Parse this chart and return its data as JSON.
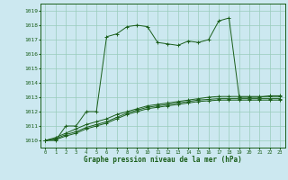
{
  "title": "Graphe pression niveau de la mer (hPa)",
  "background_color": "#cce8f0",
  "grid_color": "#99ccbb",
  "line_color": "#1a5e1a",
  "xlim": [
    -0.5,
    23.5
  ],
  "ylim": [
    1009.5,
    1019.5
  ],
  "yticks": [
    1010,
    1011,
    1012,
    1013,
    1014,
    1015,
    1016,
    1017,
    1018,
    1019
  ],
  "xticks": [
    0,
    1,
    2,
    3,
    4,
    5,
    6,
    7,
    8,
    9,
    10,
    11,
    12,
    13,
    14,
    15,
    16,
    17,
    18,
    19,
    20,
    21,
    22,
    23
  ],
  "series1_x": [
    0,
    1,
    2,
    3,
    4,
    5,
    6,
    7,
    8,
    9,
    10,
    11,
    12,
    13,
    14,
    15,
    16,
    17,
    18,
    19,
    20,
    21,
    22,
    23
  ],
  "series1_y": [
    1010.0,
    1010.0,
    1011.0,
    1011.0,
    1012.0,
    1012.0,
    1017.2,
    1017.4,
    1017.9,
    1018.0,
    1017.9,
    1016.8,
    1016.7,
    1016.6,
    1016.9,
    1016.8,
    1017.0,
    1018.3,
    1018.5,
    1013.0,
    1013.0,
    1013.0,
    1013.1,
    1013.1
  ],
  "series2_x": [
    0,
    1,
    2,
    3,
    4,
    5,
    6,
    7,
    8,
    9,
    10,
    11,
    12,
    13,
    14,
    15,
    16,
    17,
    18,
    19,
    20,
    21,
    22,
    23
  ],
  "series2_y": [
    1010.0,
    1010.2,
    1010.5,
    1010.8,
    1011.1,
    1011.3,
    1011.5,
    1011.8,
    1012.0,
    1012.2,
    1012.4,
    1012.5,
    1012.6,
    1012.7,
    1012.8,
    1012.9,
    1013.0,
    1013.05,
    1013.05,
    1013.05,
    1013.05,
    1013.05,
    1013.05,
    1013.05
  ],
  "series3_x": [
    0,
    1,
    2,
    3,
    4,
    5,
    6,
    7,
    8,
    9,
    10,
    11,
    12,
    13,
    14,
    15,
    16,
    17,
    18,
    19,
    20,
    21,
    22,
    23
  ],
  "series3_y": [
    1010.0,
    1010.1,
    1010.4,
    1010.6,
    1010.9,
    1011.1,
    1011.3,
    1011.6,
    1011.9,
    1012.1,
    1012.3,
    1012.4,
    1012.5,
    1012.6,
    1012.7,
    1012.8,
    1012.85,
    1012.9,
    1012.9,
    1012.9,
    1012.9,
    1012.9,
    1012.9,
    1012.9
  ],
  "series4_x": [
    0,
    1,
    2,
    3,
    4,
    5,
    6,
    7,
    8,
    9,
    10,
    11,
    12,
    13,
    14,
    15,
    16,
    17,
    18,
    19,
    20,
    21,
    22,
    23
  ],
  "series4_y": [
    1010.0,
    1010.05,
    1010.3,
    1010.5,
    1010.8,
    1011.0,
    1011.2,
    1011.5,
    1011.8,
    1012.0,
    1012.2,
    1012.3,
    1012.4,
    1012.5,
    1012.6,
    1012.7,
    1012.75,
    1012.8,
    1012.8,
    1012.8,
    1012.8,
    1012.8,
    1012.8,
    1012.8
  ]
}
